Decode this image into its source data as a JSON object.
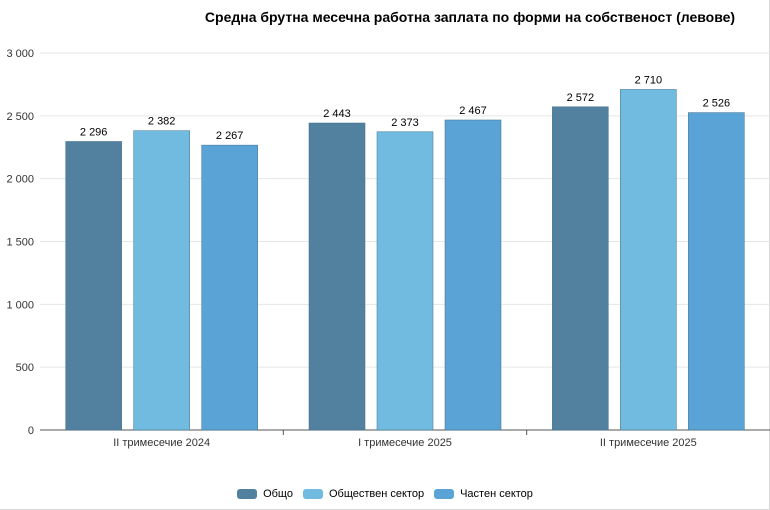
{
  "chart_data": {
    "type": "bar",
    "title": "Средна брутна месечна работна заплата по форми на собственост (левове)",
    "categories": [
      "II тримесечие 2024",
      "I тримесечие 2025",
      "II тримесечие 2025"
    ],
    "series": [
      {
        "name": "Общо",
        "values": [
          2296,
          2443,
          2572
        ],
        "value_labels": [
          "2 296",
          "2 443",
          "2 572"
        ],
        "color": "#52809f"
      },
      {
        "name": "Обществен сектор",
        "values": [
          2382,
          2373,
          2710
        ],
        "value_labels": [
          "2 382",
          "2 373",
          "2 710"
        ],
        "color": "#70bbdf"
      },
      {
        "name": "Частен сектор",
        "values": [
          2267,
          2467,
          2526
        ],
        "value_labels": [
          "2 267",
          "2 467",
          "2 526"
        ],
        "color": "#5aa3d6"
      }
    ],
    "ylim": [
      0,
      3000
    ],
    "yticks": [
      0,
      500,
      1000,
      1500,
      2000,
      2500,
      3000
    ],
    "ytick_labels": [
      "0",
      "500",
      "1 000",
      "1 500",
      "2 000",
      "2 500",
      "3 000"
    ],
    "xlabel": "",
    "ylabel": "",
    "grid": true,
    "legend_position": "bottom"
  },
  "colors": {
    "grid": "#e6e6e6",
    "axis": "#555555"
  }
}
